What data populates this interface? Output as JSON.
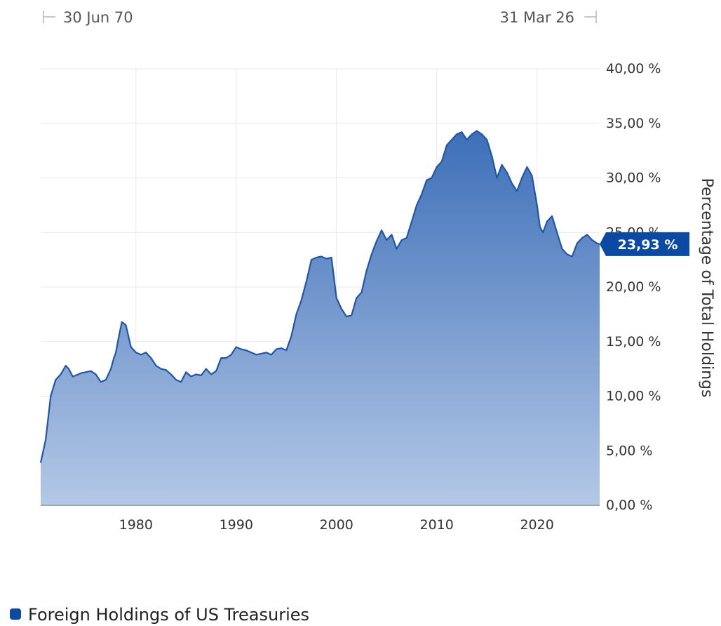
{
  "range": {
    "start_label": "30 Jun 70",
    "end_label": "31 Mar 26"
  },
  "last_value_label": "23,93 %",
  "legend": {
    "label": "Foreign Holdings of US Treasuries"
  },
  "colors": {
    "line": "#1f56a8",
    "area_top": "#3d6fb8",
    "area_bottom": "#b4c8e6",
    "flag": "#0b4aa2"
  },
  "chart_data": {
    "type": "area",
    "title": "",
    "xlabel": "",
    "ylabel": "Percentage of Total Holdings",
    "x_ticks": [
      1980,
      1990,
      2000,
      2010,
      2020
    ],
    "y_ticks": [
      "0,00 %",
      "5,00 %",
      "10,00 %",
      "15,00 %",
      "20,00 %",
      "25,00 %",
      "30,00 %",
      "35,00 %",
      "40,00 %"
    ],
    "xlim": [
      1970.5,
      2026.25
    ],
    "ylim": [
      0,
      40
    ],
    "y_axis_position": "right",
    "grid": true,
    "legend_position": "bottom-left",
    "series": [
      {
        "name": "Foreign Holdings of US Treasuries",
        "x": [
          1970.5,
          1971.0,
          1971.5,
          1972.0,
          1972.5,
          1973.0,
          1973.3,
          1973.7,
          1974.0,
          1974.5,
          1975.0,
          1975.5,
          1976.0,
          1976.5,
          1977.0,
          1977.5,
          1977.8,
          1978.0,
          1978.3,
          1978.6,
          1979.0,
          1979.5,
          1980.0,
          1980.5,
          1981.0,
          1981.5,
          1982.0,
          1982.5,
          1983.0,
          1983.5,
          1984.0,
          1984.5,
          1985.0,
          1985.5,
          1986.0,
          1986.5,
          1987.0,
          1987.5,
          1988.0,
          1988.5,
          1989.0,
          1989.5,
          1990.0,
          1990.5,
          1991.0,
          1991.5,
          1992.0,
          1992.5,
          1993.0,
          1993.5,
          1994.0,
          1994.5,
          1995.0,
          1995.5,
          1996.0,
          1996.5,
          1997.0,
          1997.5,
          1998.0,
          1998.5,
          1999.0,
          1999.5,
          2000.0,
          2000.5,
          2001.0,
          2001.5,
          2002.0,
          2002.5,
          2003.0,
          2003.5,
          2004.0,
          2004.5,
          2005.0,
          2005.5,
          2006.0,
          2006.5,
          2007.0,
          2007.5,
          2008.0,
          2008.5,
          2009.0,
          2009.5,
          2010.0,
          2010.5,
          2011.0,
          2011.5,
          2012.0,
          2012.5,
          2013.0,
          2013.5,
          2014.0,
          2014.5,
          2015.0,
          2015.5,
          2016.0,
          2016.5,
          2017.0,
          2017.5,
          2018.0,
          2018.5,
          2019.0,
          2019.5,
          2020.0,
          2020.3,
          2020.6,
          2021.0,
          2021.5,
          2022.0,
          2022.5,
          2023.0,
          2023.5,
          2024.0,
          2024.5,
          2025.0,
          2025.5,
          2026.0,
          2026.25
        ],
        "values": [
          3.9,
          6.0,
          10.0,
          11.5,
          12.0,
          12.8,
          12.5,
          11.8,
          11.9,
          12.1,
          12.2,
          12.3,
          12.0,
          11.3,
          11.5,
          12.5,
          13.5,
          14.0,
          15.5,
          16.8,
          16.5,
          14.5,
          14.0,
          13.8,
          14.0,
          13.5,
          12.8,
          12.5,
          12.4,
          12.0,
          11.5,
          11.3,
          12.2,
          11.8,
          12.0,
          11.9,
          12.5,
          12.0,
          12.3,
          13.5,
          13.5,
          13.8,
          14.5,
          14.3,
          14.2,
          14.0,
          13.8,
          13.9,
          14.0,
          13.8,
          14.3,
          14.4,
          14.2,
          15.5,
          17.5,
          18.8,
          20.5,
          22.5,
          22.7,
          22.8,
          22.6,
          22.7,
          19.0,
          18.0,
          17.3,
          17.4,
          19.0,
          19.5,
          21.5,
          23.0,
          24.2,
          25.2,
          24.3,
          24.8,
          23.5,
          24.3,
          24.5,
          26.0,
          27.5,
          28.5,
          29.8,
          30.0,
          31.0,
          31.5,
          33.0,
          33.5,
          34.0,
          34.2,
          33.5,
          34.0,
          34.3,
          34.0,
          33.5,
          32.0,
          30.0,
          31.2,
          30.5,
          29.5,
          28.8,
          30.0,
          31.0,
          30.2,
          27.5,
          25.5,
          25.0,
          26.0,
          26.5,
          25.0,
          23.5,
          23.0,
          22.8,
          24.0,
          24.5,
          24.8,
          24.3,
          24.0,
          23.93
        ]
      }
    ]
  }
}
